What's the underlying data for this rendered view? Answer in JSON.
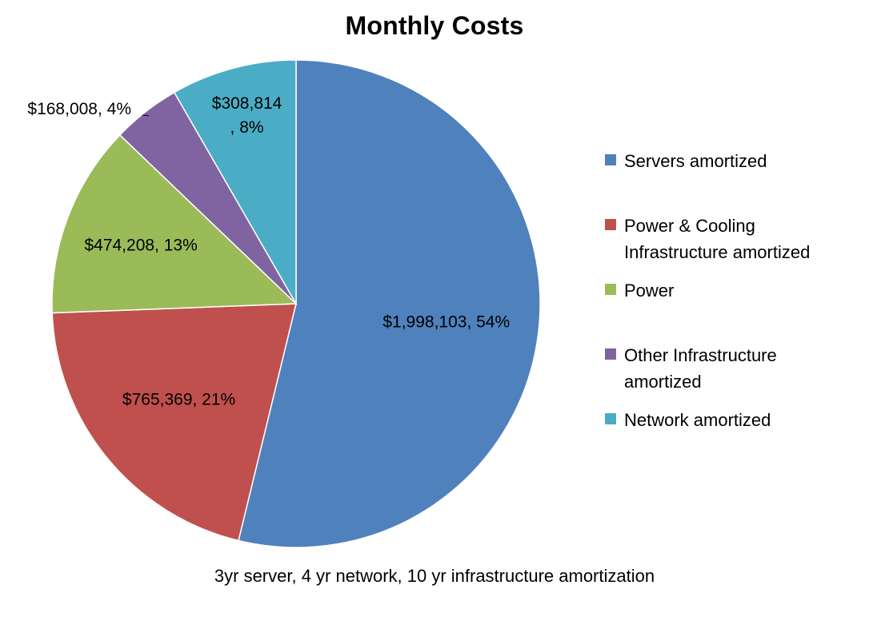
{
  "chart_data": {
    "type": "pie",
    "title": "Monthly Costs",
    "caption": "3yr server, 4 yr network,  10 yr infrastructure amortization",
    "legend_position": "right",
    "slices": [
      {
        "name": "Servers amortized",
        "value": 1998103,
        "percent": 54,
        "color": "#4F81BD",
        "label_line1": "$1,998,103, 54%",
        "label_line2": ""
      },
      {
        "name": "Power & Cooling Infrastructure amortized",
        "value": 765369,
        "percent": 21,
        "color": "#C0504D",
        "label_line1": "$765,369, 21%",
        "label_line2": ""
      },
      {
        "name": "Power",
        "value": 474208,
        "percent": 13,
        "color": "#9BBB59",
        "label_line1": "$474,208, 13%",
        "label_line2": ""
      },
      {
        "name": "Other Infrastructure amortized",
        "value": 168008,
        "percent": 4,
        "color": "#8064A2",
        "label_line1": "$168,008, 4%",
        "label_line2": ""
      },
      {
        "name": "Network  amortized",
        "value": 308814,
        "percent": 8,
        "color": "#4BACC6",
        "label_line1": "$308,814",
        "label_line2": ", 8%"
      }
    ],
    "legend": [
      {
        "line1": "Servers amortized",
        "line2": ""
      },
      {
        "line1": "Power & Cooling",
        "line2": "Infrastructure amortized"
      },
      {
        "line1": "Power",
        "line2": ""
      },
      {
        "line1": "Other Infrastructure",
        "line2": "amortized"
      },
      {
        "line1": "Network  amortized",
        "line2": ""
      }
    ]
  }
}
